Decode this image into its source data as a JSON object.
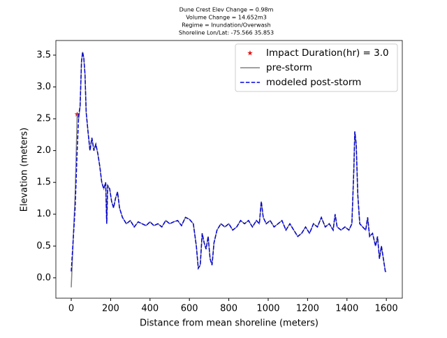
{
  "chart_data": {
    "type": "line",
    "title": [
      "Dune Crest Elev Change = 0.98m",
      "Volume Change = 14.652m3",
      "Regime = Inundation/Overwash",
      "Shoreline Lon/Lat: -75.566 35.853"
    ],
    "xlabel": "Distance from mean shoreline (meters)",
    "ylabel": "Elevation (meters)",
    "xlim": [
      -78,
      1681
    ],
    "ylim": [
      -0.32,
      3.73
    ],
    "xticks": [
      0,
      200,
      400,
      600,
      800,
      1000,
      1200,
      1400,
      1600
    ],
    "yticks": [
      {
        "value": 0,
        "label": "0.0"
      },
      0.5,
      {
        "value": 1,
        "label": "1.0"
      },
      1.5,
      {
        "value": 2,
        "label": "2.0"
      },
      2.5,
      {
        "value": 3,
        "label": "3.0"
      },
      3.5
    ],
    "legend": "upper right",
    "x": [
      0,
      10,
      20,
      30,
      38,
      45,
      52,
      58,
      64,
      70,
      76,
      85,
      95,
      105,
      115,
      125,
      135,
      145,
      155,
      165,
      175,
      180,
      185,
      195,
      205,
      215,
      225,
      235,
      245,
      260,
      280,
      300,
      320,
      340,
      360,
      380,
      400,
      420,
      440,
      460,
      480,
      500,
      520,
      540,
      560,
      580,
      600,
      620,
      635,
      645,
      655,
      665,
      675,
      685,
      695,
      705,
      715,
      725,
      740,
      760,
      780,
      800,
      820,
      840,
      860,
      880,
      900,
      920,
      940,
      955,
      965,
      975,
      990,
      1010,
      1030,
      1050,
      1070,
      1090,
      1110,
      1130,
      1150,
      1170,
      1190,
      1210,
      1230,
      1250,
      1270,
      1290,
      1310,
      1330,
      1340,
      1350,
      1370,
      1390,
      1410,
      1425,
      1435,
      1440,
      1447,
      1455,
      1465,
      1480,
      1495,
      1505,
      1515,
      1530,
      1545,
      1555,
      1565,
      1575,
      1585,
      1595,
      1600
    ],
    "series": [
      {
        "name": "Impact Duration(hr) = 3.0",
        "kind": "scatter",
        "color": "#e01010",
        "x": [
          30
        ],
        "values": [
          2.57
        ]
      },
      {
        "name": "pre-storm",
        "kind": "line",
        "color": "#808080",
        "linestyle": "solid",
        "values": [
          -0.15,
          0.6,
          1.3,
          2.57,
          2.5,
          2.7,
          3.4,
          3.55,
          3.45,
          3.2,
          2.6,
          2.3,
          2.0,
          2.2,
          2.0,
          2.1,
          1.95,
          1.75,
          1.5,
          1.4,
          1.5,
          0.85,
          1.45,
          1.4,
          1.2,
          1.1,
          1.25,
          1.35,
          1.1,
          0.95,
          0.85,
          0.9,
          0.8,
          0.88,
          0.85,
          0.82,
          0.88,
          0.82,
          0.85,
          0.8,
          0.9,
          0.85,
          0.88,
          0.9,
          0.82,
          0.95,
          0.92,
          0.85,
          0.5,
          0.15,
          0.2,
          0.7,
          0.55,
          0.45,
          0.65,
          0.3,
          0.2,
          0.55,
          0.75,
          0.85,
          0.8,
          0.85,
          0.75,
          0.8,
          0.9,
          0.85,
          0.9,
          0.8,
          0.9,
          0.85,
          1.2,
          0.95,
          0.85,
          0.9,
          0.8,
          0.85,
          0.9,
          0.75,
          0.85,
          0.75,
          0.65,
          0.7,
          0.8,
          0.7,
          0.85,
          0.8,
          0.95,
          0.8,
          0.85,
          0.75,
          1.0,
          0.8,
          0.75,
          0.8,
          0.75,
          0.85,
          1.7,
          2.3,
          2.1,
          1.3,
          0.85,
          0.8,
          0.75,
          0.95,
          0.65,
          0.7,
          0.5,
          0.65,
          0.3,
          0.5,
          0.3,
          0.1,
          0.1
        ]
      },
      {
        "name": "modeled post-storm",
        "kind": "line",
        "color": "#0000dd",
        "linestyle": "dashed",
        "values": [
          0.1,
          0.6,
          1.1,
          2.0,
          2.55,
          2.7,
          3.4,
          3.55,
          3.45,
          3.2,
          2.6,
          2.3,
          2.0,
          2.2,
          2.0,
          2.1,
          1.95,
          1.75,
          1.5,
          1.4,
          1.5,
          0.85,
          1.45,
          1.4,
          1.2,
          1.1,
          1.25,
          1.35,
          1.1,
          0.95,
          0.85,
          0.9,
          0.8,
          0.88,
          0.85,
          0.82,
          0.88,
          0.82,
          0.85,
          0.8,
          0.9,
          0.85,
          0.88,
          0.9,
          0.82,
          0.95,
          0.92,
          0.85,
          0.5,
          0.15,
          0.2,
          0.7,
          0.55,
          0.45,
          0.65,
          0.3,
          0.2,
          0.55,
          0.75,
          0.85,
          0.8,
          0.85,
          0.75,
          0.8,
          0.9,
          0.85,
          0.9,
          0.8,
          0.9,
          0.85,
          1.2,
          0.95,
          0.85,
          0.9,
          0.8,
          0.85,
          0.9,
          0.75,
          0.85,
          0.75,
          0.65,
          0.7,
          0.8,
          0.7,
          0.85,
          0.8,
          0.95,
          0.8,
          0.85,
          0.75,
          1.0,
          0.8,
          0.75,
          0.8,
          0.75,
          0.85,
          1.7,
          2.3,
          2.1,
          1.3,
          0.85,
          0.8,
          0.75,
          0.95,
          0.65,
          0.7,
          0.5,
          0.65,
          0.3,
          0.5,
          0.3,
          0.1,
          0.1
        ]
      }
    ]
  }
}
